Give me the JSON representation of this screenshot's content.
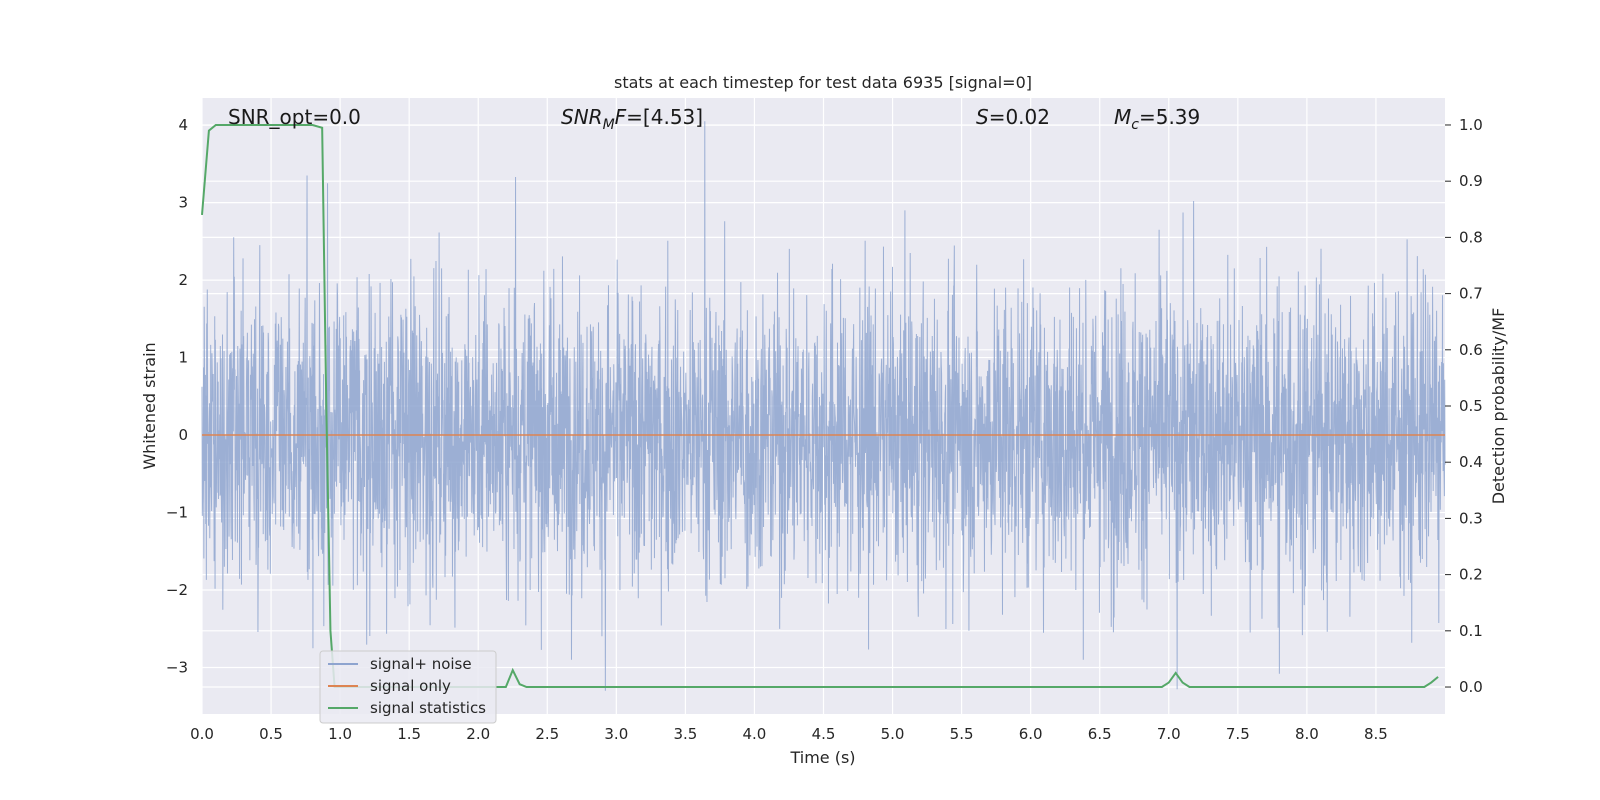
{
  "chart_data": {
    "type": "line",
    "title": "stats at each timestep for test data 6935 [signal=0]",
    "xlabel": "Time (s)",
    "ylabel": "Whitened strain",
    "y2label": "Detection probability/MF",
    "xlim": [
      0.0,
      9.0
    ],
    "ylim": [
      -3.6,
      4.35
    ],
    "y2lim": [
      -0.048,
      1.048
    ],
    "xticks": [
      "0.0",
      "0.5",
      "1.0",
      "1.5",
      "2.0",
      "2.5",
      "3.0",
      "3.5",
      "4.0",
      "4.5",
      "5.0",
      "5.5",
      "6.0",
      "6.5",
      "7.0",
      "7.5",
      "8.0",
      "8.5"
    ],
    "yticks": [
      "4",
      "3",
      "2",
      "1",
      "0",
      "−1",
      "−2",
      "−3"
    ],
    "ytick_values": [
      4,
      3,
      2,
      1,
      0,
      -1,
      -2,
      -3
    ],
    "y2ticks": [
      "1.0",
      "0.9",
      "0.8",
      "0.7",
      "0.6",
      "0.5",
      "0.4",
      "0.3",
      "0.2",
      "0.1",
      "0.0"
    ],
    "y2tick_values": [
      1.0,
      0.9,
      0.8,
      0.7,
      0.6,
      0.5,
      0.4,
      0.3,
      0.2,
      0.1,
      0.0
    ],
    "grid": true,
    "legend_position": "lower-left",
    "annotations": {
      "snr_opt": "SNR_opt=0.0",
      "snr_mf_label": "SNR",
      "snr_mf_sub": "M",
      "snr_mf_rest": "F=[4.53]",
      "s_label": "S",
      "s_value": "=0.02",
      "mc_label": "M",
      "mc_sub": "c",
      "mc_value": "=5.39"
    },
    "series": [
      {
        "name": "signal+ noise",
        "color": "#8ea4cf",
        "axis": "left",
        "description": "whitened noise, approx. gaussian, sigma ~1, peaks reaching ~±3 to 4",
        "peaks": [
          [
            0.76,
            3.35
          ],
          [
            0.91,
            3.25
          ],
          [
            2.27,
            3.33
          ],
          [
            3.64,
            4.05
          ],
          [
            7.18,
            3.02
          ],
          [
            2.92,
            -3.3
          ],
          [
            7.06,
            -3.28
          ],
          [
            7.8,
            -3.08
          ]
        ]
      },
      {
        "name": "signal only",
        "color": "#dd8452",
        "axis": "left",
        "x": [
          0.0,
          9.0
        ],
        "y": [
          0.0,
          0.0
        ]
      },
      {
        "name": "signal statistics",
        "color": "#55a868",
        "axis": "right",
        "x": [
          0.0,
          0.05,
          0.1,
          0.15,
          0.2,
          0.4,
          0.6,
          0.8,
          0.87,
          0.9,
          0.93,
          0.96,
          1.0,
          2.0,
          2.2,
          2.25,
          2.3,
          2.35,
          2.4,
          6.95,
          7.0,
          7.05,
          7.1,
          7.15,
          7.2,
          8.85,
          8.9,
          8.95
        ],
        "y": [
          0.84,
          0.99,
          1.0,
          1.0,
          1.0,
          1.0,
          1.0,
          1.0,
          0.995,
          0.5,
          0.1,
          0.0,
          0.0,
          0.0,
          0.0,
          0.03,
          0.005,
          0.0,
          0.0,
          0.0,
          0.008,
          0.025,
          0.008,
          0.0,
          0.0,
          0.0,
          0.008,
          0.018
        ]
      }
    ]
  }
}
